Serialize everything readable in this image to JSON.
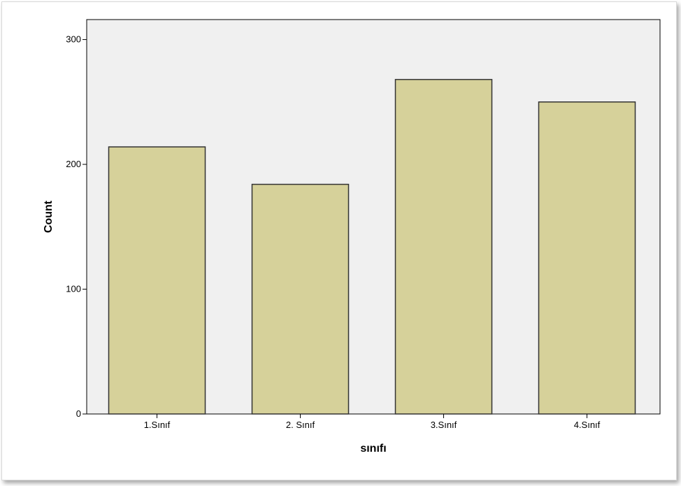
{
  "chart_data": {
    "type": "bar",
    "categories": [
      "1.Sınıf",
      "2. Sınıf",
      "3.Sınıf",
      "4.Sınıf"
    ],
    "values": [
      214,
      184,
      268,
      250
    ],
    "xlabel": "sınıfı",
    "ylabel": "Count",
    "ylim": [
      0,
      316
    ],
    "yticks": [
      0,
      100,
      200,
      300
    ],
    "grid": false,
    "colors": {
      "plot_background": "#f0f0f0",
      "bar_fill": "#d6d19a",
      "bar_stroke": "#333333",
      "frame": "#000000"
    }
  }
}
